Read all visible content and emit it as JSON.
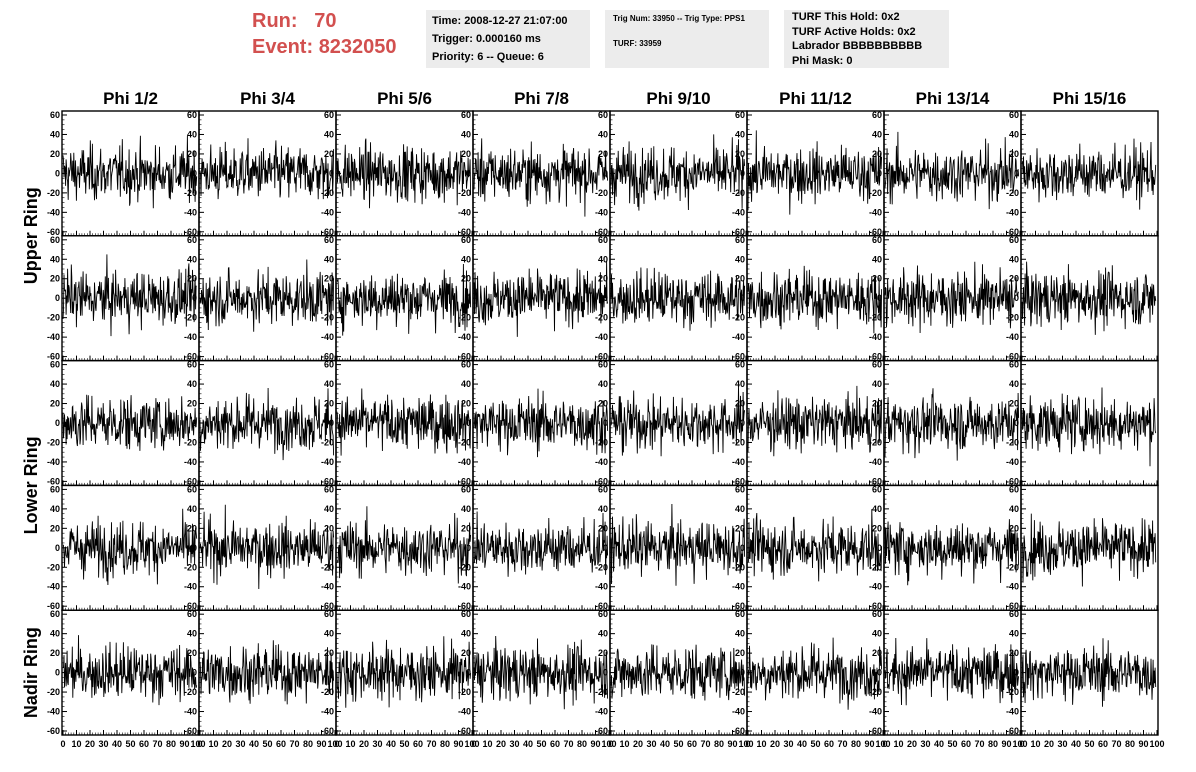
{
  "header": {
    "run_label": "Run:",
    "run_value": "70",
    "event_label": "Event:",
    "event_value": "8232050"
  },
  "info_time": {
    "time": "Time: 2008-12-27 21:07:00",
    "trigger": "Trigger: 0.000160 ms",
    "priority": "Priority: 6 -- Queue: 6"
  },
  "info_trig": {
    "trig": "Trig Num: 33950 -- Trig Type: PPS1",
    "turf": "TURF: 33959"
  },
  "info_turf": {
    "this_hold": "TURF This Hold: 0x2",
    "active_holds": "TURF Active Holds: 0x2",
    "labrador": "Labrador BBBBBBBBBB",
    "phi_mask": "Phi Mask: 0"
  },
  "colors": {
    "run_text": "#d2504f",
    "info_bg": "#ececec",
    "trace": "#000000"
  },
  "chart_data": {
    "type": "line",
    "columns": [
      "Phi 1/2",
      "Phi 3/4",
      "Phi 5/6",
      "Phi 7/8",
      "Phi 9/10",
      "Phi 11/12",
      "Phi 13/14",
      "Phi 15/16"
    ],
    "rows": [
      "Upper Ring",
      "Upper Ring",
      "Lower Ring",
      "Lower Ring",
      "Nadir Ring"
    ],
    "row_labels": [
      {
        "text": "Upper Ring",
        "rows": [
          0,
          1
        ]
      },
      {
        "text": "Lower Ring",
        "rows": [
          2,
          3
        ]
      },
      {
        "text": "Nadir Ring",
        "rows": [
          4
        ]
      }
    ],
    "xlim": [
      0,
      100
    ],
    "ylim": [
      -60,
      60
    ],
    "x_ticks": [
      0,
      10,
      20,
      30,
      40,
      50,
      60,
      70,
      80,
      90,
      100
    ],
    "y_ticks": [
      -60,
      -40,
      -20,
      0,
      20,
      40,
      60
    ],
    "samples_per_trace": 260,
    "trace_amplitude_rms": 14,
    "grid": false,
    "legend": false
  }
}
